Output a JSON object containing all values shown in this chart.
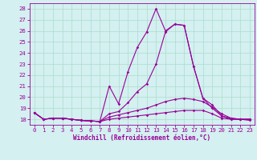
{
  "x": [
    0,
    1,
    2,
    3,
    4,
    5,
    6,
    7,
    8,
    9,
    10,
    11,
    12,
    13,
    14,
    15,
    16,
    17,
    18,
    19,
    20,
    21,
    22,
    23
  ],
  "line1": [
    18.6,
    18.0,
    18.1,
    18.1,
    18.0,
    17.9,
    17.85,
    17.8,
    21.0,
    19.4,
    22.3,
    24.5,
    25.9,
    28.0,
    26.0,
    26.6,
    26.5,
    22.8,
    19.9,
    19.0,
    18.3,
    18.0,
    18.0,
    18.0
  ],
  "line2": [
    18.6,
    18.0,
    18.1,
    18.1,
    18.0,
    17.9,
    17.85,
    17.8,
    18.5,
    18.7,
    19.5,
    20.5,
    21.2,
    23.0,
    25.9,
    26.6,
    26.5,
    22.8,
    19.9,
    19.3,
    18.3,
    18.1,
    18.0,
    18.0
  ],
  "line3": [
    18.6,
    18.0,
    18.1,
    18.1,
    18.0,
    17.9,
    17.85,
    17.8,
    18.2,
    18.4,
    18.6,
    18.8,
    19.0,
    19.3,
    19.6,
    19.8,
    19.9,
    19.8,
    19.6,
    19.1,
    18.5,
    18.1,
    18.0,
    18.0
  ],
  "line4": [
    18.6,
    18.0,
    18.1,
    18.1,
    18.0,
    17.9,
    17.85,
    17.8,
    18.0,
    18.1,
    18.2,
    18.3,
    18.4,
    18.5,
    18.6,
    18.7,
    18.8,
    18.8,
    18.8,
    18.5,
    18.1,
    18.0,
    18.0,
    17.9
  ],
  "line_color": "#990099",
  "bg_color": "#d4f0f0",
  "grid_color": "#aaddcc",
  "xlabel": "Windchill (Refroidissement éolien,°C)",
  "ylim": [
    17.5,
    28.5
  ],
  "xlim": [
    -0.5,
    23.5
  ],
  "yticks": [
    18,
    19,
    20,
    21,
    22,
    23,
    24,
    25,
    26,
    27,
    28
  ],
  "xticks": [
    0,
    1,
    2,
    3,
    4,
    5,
    6,
    7,
    8,
    9,
    10,
    11,
    12,
    13,
    14,
    15,
    16,
    17,
    18,
    19,
    20,
    21,
    22,
    23
  ]
}
